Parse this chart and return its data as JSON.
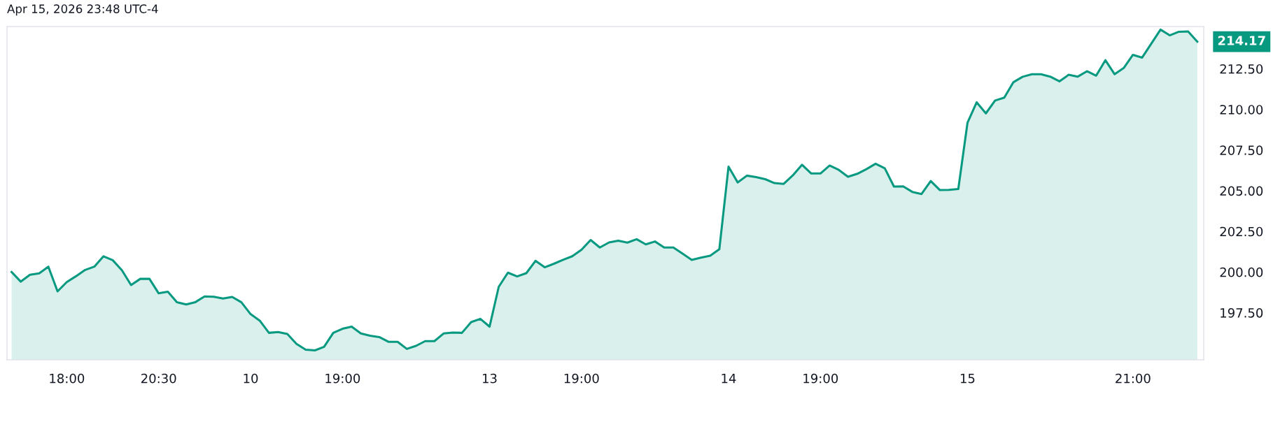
{
  "chart_data": {
    "type": "area",
    "title": "Apr 15, 2026 23:48 UTC-4",
    "categories": [
      null,
      null,
      null,
      null,
      null,
      null,
      "18:00",
      null,
      null,
      null,
      null,
      null,
      null,
      null,
      null,
      null,
      "20:30",
      null,
      null,
      null,
      null,
      null,
      null,
      null,
      null,
      null,
      "10",
      null,
      null,
      null,
      null,
      null,
      null,
      null,
      null,
      null,
      "19:00",
      null,
      null,
      null,
      null,
      null,
      null,
      null,
      null,
      null,
      null,
      null,
      null,
      null,
      null,
      null,
      "13",
      null,
      null,
      null,
      null,
      null,
      null,
      null,
      null,
      null,
      "19:00",
      null,
      null,
      null,
      null,
      null,
      null,
      null,
      null,
      null,
      null,
      null,
      null,
      null,
      null,
      null,
      "14",
      null,
      null,
      null,
      null,
      null,
      null,
      null,
      null,
      null,
      "19:00",
      null,
      null,
      null,
      null,
      null,
      null,
      null,
      null,
      null,
      null,
      null,
      null,
      null,
      null,
      null,
      "15",
      null,
      null,
      null,
      null,
      null,
      null,
      null,
      null,
      null,
      null,
      null,
      null,
      null,
      null,
      null,
      null,
      null,
      "21:00",
      null,
      null,
      null,
      null,
      null,
      null,
      null
    ],
    "series": [
      {
        "color": "#089981",
        "values": [
          200.0,
          199.41,
          199.83,
          199.92,
          200.33,
          198.81,
          199.38,
          199.74,
          200.13,
          200.33,
          200.97,
          200.73,
          200.11,
          199.2,
          199.58,
          199.58,
          198.69,
          198.79,
          198.14,
          198.01,
          198.15,
          198.5,
          198.48,
          198.37,
          198.47,
          198.14,
          197.41,
          197.01,
          196.26,
          196.31,
          196.19,
          195.58,
          195.22,
          195.18,
          195.4,
          196.26,
          196.51,
          196.64,
          196.22,
          196.08,
          196.0,
          195.71,
          195.71,
          195.27,
          195.46,
          195.75,
          195.75,
          196.22,
          196.28,
          196.26,
          196.92,
          197.12,
          196.64,
          199.09,
          199.96,
          199.73,
          199.93,
          200.69,
          200.29,
          200.51,
          200.75,
          200.97,
          201.37,
          201.97,
          201.51,
          201.82,
          201.93,
          201.81,
          202.02,
          201.7,
          201.88,
          201.51,
          201.51,
          201.13,
          200.75,
          200.89,
          201.0,
          201.4,
          206.48,
          205.51,
          205.93,
          205.84,
          205.71,
          205.47,
          205.42,
          205.95,
          206.6,
          206.06,
          206.06,
          206.55,
          206.28,
          205.86,
          206.04,
          206.33,
          206.66,
          206.38,
          205.26,
          205.27,
          204.93,
          204.8,
          205.6,
          205.04,
          205.05,
          205.11,
          209.18,
          210.44,
          209.76,
          210.55,
          210.73,
          211.68,
          212.01,
          212.17,
          212.17,
          212.02,
          211.73,
          212.13,
          212.02,
          212.35,
          212.08,
          213.03,
          212.17,
          212.55,
          213.36,
          213.19,
          214.05,
          214.91,
          214.56,
          214.78,
          214.8,
          214.17
        ]
      }
    ],
    "ylim": [
      194.6,
      215.1
    ],
    "yticks": [
      {
        "value": 197.5,
        "label": "197.50"
      },
      {
        "value": 200,
        "label": "200.00"
      },
      {
        "value": 202.5,
        "label": "202.50"
      },
      {
        "value": 205,
        "label": "205.00"
      },
      {
        "value": 207.5,
        "label": "207.50"
      },
      {
        "value": 210,
        "label": "210.00"
      },
      {
        "value": 212.5,
        "label": "212.50"
      }
    ],
    "annotations": [
      "214.17"
    ],
    "grid": false
  }
}
